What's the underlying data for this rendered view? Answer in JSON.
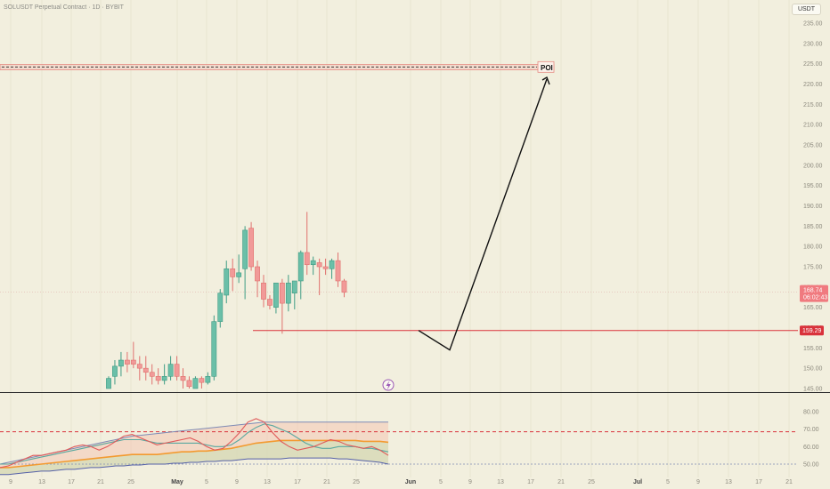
{
  "header": {
    "symbol_title": "SOLUSDT Perpetual Contract · 1D · BYBIT",
    "currency_label": "USDT"
  },
  "price_scale": {
    "ticks": [
      "235.00",
      "230.00",
      "225.00",
      "220.00",
      "215.00",
      "210.00",
      "205.00",
      "200.00",
      "195.00",
      "190.00",
      "185.00",
      "180.00",
      "175.00",
      "170.00",
      "165.00",
      "160.00",
      "155.00",
      "150.00",
      "145.00"
    ],
    "current_price": "168.74",
    "countdown": "06:02:43",
    "support_price": "159.29"
  },
  "indicator_scale": {
    "ticks": [
      "80.00",
      "70.00",
      "60.00",
      "50.00"
    ]
  },
  "time_axis": {
    "labels": [
      "9",
      "13",
      "17",
      "21",
      "25",
      "May",
      "5",
      "9",
      "13",
      "17",
      "21",
      "25",
      "Jun",
      "5",
      "9",
      "13",
      "17",
      "21",
      "25",
      "Jul",
      "5",
      "9",
      "13",
      "17",
      "21"
    ]
  },
  "annotations": {
    "poi_label": "POI"
  },
  "colors": {
    "background": "#f2efde",
    "bull": "#6bbfa8",
    "bear": "#f19a98",
    "support_line": "#d9323b",
    "poi_zone": "#f2c9c0",
    "oscillator_fast": "#e05a5a",
    "oscillator_signal": "#5aa8a0",
    "oscillator_slow": "#f39a30",
    "oscillator_upper": "#7d8ab5",
    "price_badge": "#f07a7f"
  },
  "chart_data": {
    "type": "candlestick",
    "title": "SOLUSDT Perpetual Contract · 1D · BYBIT",
    "ylim": [
      143,
      237
    ],
    "candles": [
      {
        "o": 145,
        "h": 148,
        "l": 144,
        "c": 147.5
      },
      {
        "o": 148,
        "h": 152,
        "l": 146,
        "c": 150.5
      },
      {
        "o": 150.5,
        "h": 154,
        "l": 148,
        "c": 152
      },
      {
        "o": 152,
        "h": 154,
        "l": 149,
        "c": 151
      },
      {
        "o": 152,
        "h": 156.5,
        "l": 150,
        "c": 151
      },
      {
        "o": 151,
        "h": 153,
        "l": 147,
        "c": 150
      },
      {
        "o": 150,
        "h": 153,
        "l": 147,
        "c": 149
      },
      {
        "o": 149,
        "h": 151,
        "l": 146,
        "c": 148
      },
      {
        "o": 148,
        "h": 150,
        "l": 146,
        "c": 147
      },
      {
        "o": 147,
        "h": 151,
        "l": 146,
        "c": 148
      },
      {
        "o": 148,
        "h": 153,
        "l": 147,
        "c": 151
      },
      {
        "o": 151,
        "h": 153,
        "l": 147,
        "c": 148
      },
      {
        "o": 148,
        "h": 150,
        "l": 145,
        "c": 147
      },
      {
        "o": 147,
        "h": 148,
        "l": 144,
        "c": 145.5
      },
      {
        "o": 145,
        "h": 148,
        "l": 144,
        "c": 147.5
      },
      {
        "o": 147.5,
        "h": 148,
        "l": 144,
        "c": 146.5
      },
      {
        "o": 146.5,
        "h": 149,
        "l": 146,
        "c": 148
      },
      {
        "o": 148,
        "h": 163,
        "l": 147,
        "c": 161.5
      },
      {
        "o": 161.5,
        "h": 169.5,
        "l": 160,
        "c": 168.5
      },
      {
        "o": 168,
        "h": 176.5,
        "l": 166,
        "c": 174.5
      },
      {
        "o": 174.5,
        "h": 177,
        "l": 169,
        "c": 172.5
      },
      {
        "o": 172.5,
        "h": 178,
        "l": 171,
        "c": 173.5
      },
      {
        "o": 174.5,
        "h": 185,
        "l": 167,
        "c": 184
      },
      {
        "o": 184.5,
        "h": 186,
        "l": 174,
        "c": 175
      },
      {
        "o": 175,
        "h": 176.5,
        "l": 167.5,
        "c": 171.5
      },
      {
        "o": 171,
        "h": 173,
        "l": 165,
        "c": 167
      },
      {
        "o": 167,
        "h": 168,
        "l": 164.5,
        "c": 165.5
      },
      {
        "o": 165,
        "h": 171,
        "l": 163.5,
        "c": 171
      },
      {
        "o": 171,
        "h": 172,
        "l": 158.5,
        "c": 166
      },
      {
        "o": 166,
        "h": 173,
        "l": 164,
        "c": 171
      },
      {
        "o": 168.5,
        "h": 171,
        "l": 164.5,
        "c": 171.5
      },
      {
        "o": 171.5,
        "h": 179,
        "l": 167,
        "c": 178.5
      },
      {
        "o": 178.5,
        "h": 188.5,
        "l": 173,
        "c": 175.5
      },
      {
        "o": 175.5,
        "h": 177.5,
        "l": 173,
        "c": 176.5
      },
      {
        "o": 176,
        "h": 177,
        "l": 168,
        "c": 175
      },
      {
        "o": 175,
        "h": 177,
        "l": 173,
        "c": 174.5
      },
      {
        "o": 174.5,
        "h": 177,
        "l": 172,
        "c": 176.5
      },
      {
        "o": 176.5,
        "h": 178.5,
        "l": 170,
        "c": 171.5
      },
      {
        "o": 171.5,
        "h": 172,
        "l": 167.5,
        "c": 168.7
      }
    ],
    "levels": {
      "poi_zone": [
        223.5,
        224.8
      ],
      "poi_dashed": 224.2,
      "support": 159.29,
      "current": 168.74
    },
    "projection": [
      {
        "date": "~May 26",
        "price": 159.3
      },
      {
        "date": "~Jun 3",
        "price": 154.5
      },
      {
        "date": "~Jun 20",
        "price": 221
      }
    ],
    "oscillator": {
      "ylim": [
        47,
        85
      ],
      "levels": {
        "upper": 68.5,
        "lower": 50
      },
      "fast": [
        48,
        49,
        51,
        53,
        55,
        55,
        56,
        57,
        58,
        60,
        61,
        60,
        58,
        60,
        63,
        66,
        67,
        65,
        63,
        61,
        62,
        63,
        64,
        65,
        63,
        60,
        58,
        59,
        63,
        68,
        74,
        76,
        74,
        68,
        63,
        60,
        58,
        59,
        60,
        62,
        64,
        63,
        61,
        60,
        59,
        60,
        58,
        55
      ],
      "signal": [
        50,
        50,
        51,
        52,
        53,
        54,
        55,
        56,
        57,
        58,
        59,
        60,
        61,
        62,
        63,
        64,
        64,
        64,
        63,
        62,
        62,
        62,
        62,
        62,
        62,
        61,
        60,
        60,
        61,
        64,
        68,
        71,
        73,
        72,
        70,
        68,
        65,
        62,
        60,
        59,
        59,
        60,
        60,
        60,
        59,
        59,
        58,
        57
      ],
      "slow": [
        48,
        48,
        48.5,
        49,
        49.5,
        50,
        50.5,
        51,
        51.5,
        52,
        52.5,
        53,
        53.5,
        54,
        54.5,
        55,
        55.5,
        55.5,
        55.5,
        55.5,
        56,
        56.5,
        57,
        57,
        57.5,
        57.5,
        58,
        58.5,
        59,
        60,
        61,
        62,
        62.5,
        63,
        63.5,
        63.5,
        63.5,
        63.5,
        63.5,
        63.5,
        63.5,
        63.5,
        63.5,
        63.5,
        63,
        63,
        63,
        62.5
      ],
      "upper": [
        50,
        51,
        52,
        53,
        54,
        55,
        56,
        57,
        58,
        59,
        60,
        61,
        62,
        63,
        64,
        65,
        66,
        66.5,
        67,
        67.5,
        68,
        68.5,
        69,
        69.5,
        70,
        70.5,
        71,
        71.5,
        72,
        72.5,
        73,
        73.5,
        74,
        74,
        74,
        74,
        74,
        74,
        74,
        74,
        74,
        74,
        74,
        74,
        74,
        74,
        74,
        74
      ],
      "lower": [
        44,
        44,
        44.5,
        45,
        45.5,
        46,
        46,
        46.5,
        47,
        47,
        47.5,
        48,
        48,
        48.5,
        49,
        49,
        49.5,
        49.5,
        50,
        50,
        50,
        50.5,
        50.5,
        51,
        51,
        51.5,
        51.5,
        52,
        52,
        52.5,
        53,
        53,
        53,
        53,
        53,
        53.5,
        53.5,
        53.5,
        53.5,
        53.5,
        53.5,
        53,
        53,
        52.5,
        52,
        51.5,
        51,
        50
      ]
    }
  }
}
